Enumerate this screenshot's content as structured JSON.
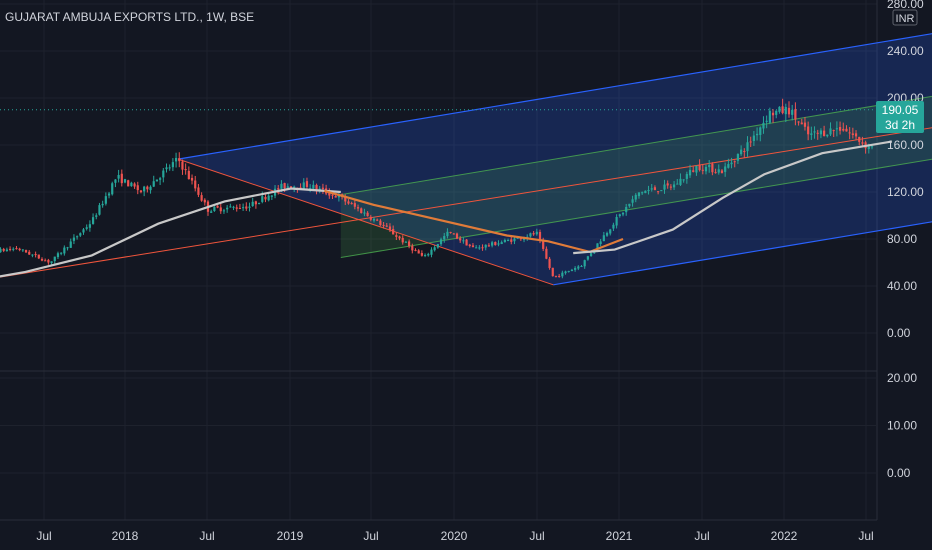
{
  "header": {
    "title": "GUJARAT AMBUJA EXPORTS LTD., 1W, BSE"
  },
  "currency": "INR",
  "price_tag": {
    "value": "190.05",
    "countdown": "3d 2h"
  },
  "colors": {
    "background": "#131722",
    "up": "#26a69a",
    "down": "#ef5350",
    "ma_long": "#c8c8c8",
    "ma_mid": "#e07b39",
    "channel_outer": "#2962ff",
    "channel_inner": "#4caf50",
    "median": "#f0553c"
  },
  "chart_data": [
    {
      "type": "candlestick",
      "title": "GUJARAT AMBUJA EXPORTS LTD., 1W, BSE",
      "ylim": [
        0,
        280
      ],
      "y_ticks": [
        "280.00",
        "240.00",
        "200.00",
        "160.00",
        "120.00",
        "80.00",
        "40.00",
        "0.00"
      ],
      "x_ticks": [
        "Jul",
        "2018",
        "Jul",
        "2019",
        "Jul",
        "2020",
        "Jul",
        "2021",
        "Jul",
        "2022",
        "Jul"
      ],
      "anchors": [
        {
          "t": 0.0,
          "v": 66
        },
        {
          "t": 0.35,
          "v": 72
        },
        {
          "t": 0.55,
          "v": 60
        },
        {
          "t": 0.8,
          "v": 95
        },
        {
          "t": 0.95,
          "v": 133
        },
        {
          "t": 1.1,
          "v": 120
        },
        {
          "t": 1.32,
          "v": 148
        },
        {
          "t": 1.5,
          "v": 105
        },
        {
          "t": 1.75,
          "v": 108
        },
        {
          "t": 1.95,
          "v": 125
        },
        {
          "t": 2.1,
          "v": 126
        },
        {
          "t": 2.3,
          "v": 115
        },
        {
          "t": 2.55,
          "v": 92
        },
        {
          "t": 2.8,
          "v": 64
        },
        {
          "t": 2.95,
          "v": 86
        },
        {
          "t": 3.1,
          "v": 72
        },
        {
          "t": 3.35,
          "v": 80
        },
        {
          "t": 3.48,
          "v": 85
        },
        {
          "t": 3.58,
          "v": 47
        },
        {
          "t": 3.75,
          "v": 58
        },
        {
          "t": 3.95,
          "v": 95
        },
        {
          "t": 4.1,
          "v": 120
        },
        {
          "t": 4.3,
          "v": 125
        },
        {
          "t": 4.45,
          "v": 142
        },
        {
          "t": 4.6,
          "v": 138
        },
        {
          "t": 4.75,
          "v": 160
        },
        {
          "t": 4.88,
          "v": 187
        },
        {
          "t": 5.0,
          "v": 190
        },
        {
          "t": 5.12,
          "v": 168
        },
        {
          "t": 5.32,
          "v": 175
        },
        {
          "t": 5.48,
          "v": 158
        },
        {
          "t": 5.57,
          "v": 168
        },
        {
          "t": 5.62,
          "v": 190
        }
      ],
      "ma_long": [
        {
          "t": 0.0,
          "v": 42
        },
        {
          "t": 0.4,
          "v": 52
        },
        {
          "t": 0.8,
          "v": 66
        },
        {
          "t": 1.2,
          "v": 93
        },
        {
          "t": 1.6,
          "v": 112
        },
        {
          "t": 2.0,
          "v": 123
        },
        {
          "t": 2.3,
          "v": 120
        }
      ],
      "ma_mid": [
        {
          "t": 2.2,
          "v": 121
        },
        {
          "t": 2.5,
          "v": 109
        },
        {
          "t": 2.9,
          "v": 96
        },
        {
          "t": 3.3,
          "v": 83
        },
        {
          "t": 3.55,
          "v": 78
        },
        {
          "t": 3.8,
          "v": 69
        },
        {
          "t": 4.0,
          "v": 80
        }
      ],
      "ma_long_2": [
        {
          "t": 3.7,
          "v": 68
        },
        {
          "t": 3.95,
          "v": 71
        },
        {
          "t": 4.3,
          "v": 88
        },
        {
          "t": 4.6,
          "v": 115
        },
        {
          "t": 4.85,
          "v": 135
        },
        {
          "t": 5.2,
          "v": 153
        },
        {
          "t": 5.62,
          "v": 163
        }
      ],
      "pitchfork": {
        "p1": {
          "t": 1.32,
          "v": 148
        },
        "p2": {
          "t": 3.58,
          "v": 41
        },
        "slope_per_year": 23.5,
        "median_start": {
          "t": 0.0,
          "v": 42
        },
        "median_offset_at_start_of_channel": 0
      }
    },
    {
      "type": "bar",
      "title": "",
      "ylim": [
        -5,
        25
      ],
      "y_ticks": [
        "20.00",
        "10.00",
        "0.00"
      ],
      "values": []
    }
  ]
}
